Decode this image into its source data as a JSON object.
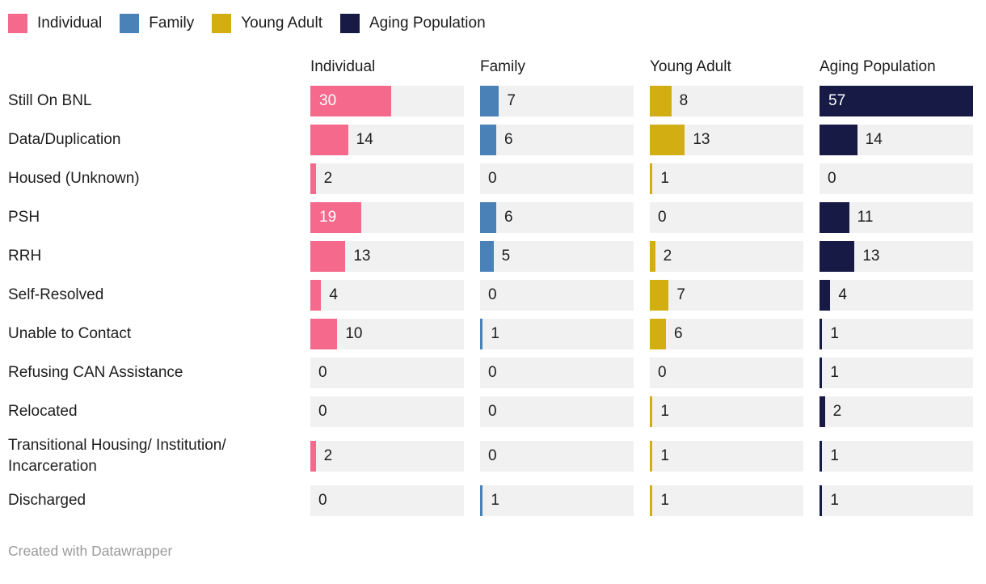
{
  "legend": {
    "items": [
      {
        "label": "Individual",
        "color": "#F5698C"
      },
      {
        "label": "Family",
        "color": "#4A81B6"
      },
      {
        "label": "Young Adult",
        "color": "#D3AE12"
      },
      {
        "label": "Aging Population",
        "color": "#171A45"
      }
    ]
  },
  "chart_data": {
    "type": "bar",
    "layout": "small-multiples-horizontal-bars",
    "title": "",
    "categories": [
      "Still On BNL",
      "Data/Duplication",
      "Housed (Unknown)",
      "PSH",
      "RRH",
      "Self-Resolved",
      "Unable to Contact",
      "Refusing CAN Assistance",
      "Relocated",
      "Transitional Housing/ Institution/ Incarceration",
      "Discharged"
    ],
    "series": [
      {
        "name": "Individual",
        "color": "#F5698C",
        "values": [
          30,
          14,
          2,
          19,
          13,
          4,
          10,
          0,
          0,
          2,
          0
        ]
      },
      {
        "name": "Family",
        "color": "#4A81B6",
        "values": [
          7,
          6,
          0,
          6,
          5,
          0,
          1,
          0,
          0,
          0,
          1
        ]
      },
      {
        "name": "Young Adult",
        "color": "#D3AE12",
        "values": [
          8,
          13,
          1,
          0,
          2,
          7,
          6,
          0,
          1,
          1,
          1
        ]
      },
      {
        "name": "Aging Population",
        "color": "#171A45",
        "values": [
          57,
          14,
          0,
          11,
          13,
          4,
          1,
          1,
          2,
          1,
          1
        ]
      }
    ],
    "xmax": 57,
    "grid": false,
    "legend_position": "top",
    "value_labels": "shown"
  },
  "style": {
    "track_color": "#f1f1f2",
    "text_color": "#1d1d1d",
    "inside_label_color": "#ffffff",
    "footer_color": "#9a9a9a"
  },
  "footer": {
    "credit": "Created with Datawrapper"
  }
}
